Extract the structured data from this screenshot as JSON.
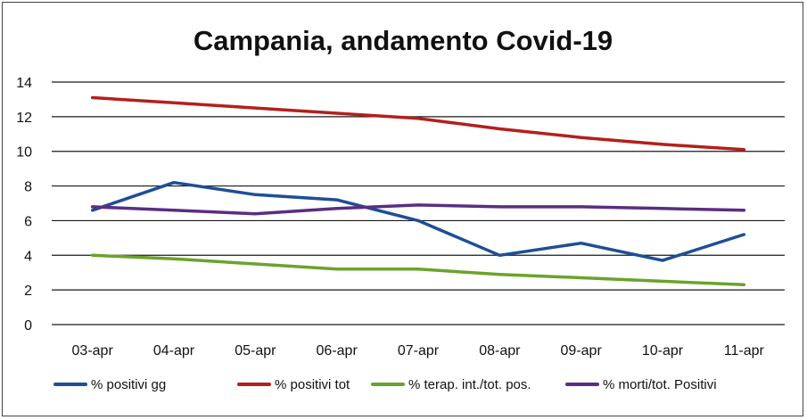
{
  "chart_data": {
    "type": "line",
    "title": "Campania, andamento Covid-19",
    "xlabel": "",
    "ylabel": "",
    "categories": [
      "03-apr",
      "04-apr",
      "05-apr",
      "06-apr",
      "07-apr",
      "08-apr",
      "09-apr",
      "10-apr",
      "11-apr"
    ],
    "ylim": [
      0,
      14
    ],
    "yticks": [
      "0",
      "2",
      "4",
      "6",
      "8",
      "10",
      "12",
      "14"
    ],
    "grid": true,
    "legend_position": "bottom",
    "series": [
      {
        "name": "% positivi gg",
        "color": "#1f4e96",
        "values": [
          6.6,
          8.2,
          7.5,
          7.2,
          6.0,
          4.0,
          4.7,
          3.7,
          5.2
        ]
      },
      {
        "name": "% positivi tot",
        "color": "#b3201c",
        "values": [
          13.1,
          12.8,
          12.5,
          12.2,
          11.9,
          11.3,
          10.8,
          10.4,
          10.1
        ]
      },
      {
        "name": "% terap. int./tot. pos.",
        "color": "#6aa32c",
        "values": [
          4.0,
          3.8,
          3.5,
          3.2,
          3.2,
          2.9,
          2.7,
          2.5,
          2.3
        ]
      },
      {
        "name": "% morti/tot. Positivi",
        "color": "#5b2d82",
        "values": [
          6.8,
          6.6,
          6.4,
          6.7,
          6.9,
          6.8,
          6.8,
          6.7,
          6.6
        ]
      }
    ]
  }
}
